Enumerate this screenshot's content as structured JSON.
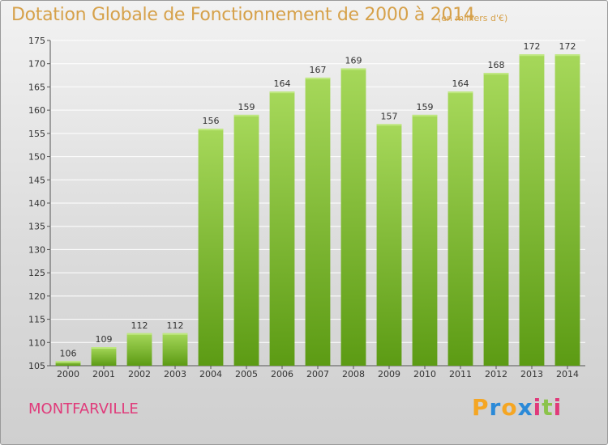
{
  "header": {
    "title": "Dotation Globale de Fonctionnement de 2000 à 2014",
    "unit": "(en milliers d'€)"
  },
  "footer": {
    "commune": "MONTFARVILLE",
    "logo_text": "Proxiti"
  },
  "colors": {
    "bar_top": "#9bd14c",
    "bar_bottom": "#5f9f16",
    "title": "#d6a14a",
    "commune": "#e03a7a",
    "logo_p": "#f5a623",
    "logo_r": "#2b8ad8",
    "logo_o": "#f5a623",
    "logo_x": "#2b8ad8",
    "logo_i": "#e03a7a",
    "logo_t": "#8bc34a"
  },
  "chart_data": {
    "type": "bar",
    "title": "Dotation Globale de Fonctionnement de 2000 à 2014",
    "subtitle": "(en milliers d'€)",
    "categories": [
      "2000",
      "2001",
      "2002",
      "2003",
      "2004",
      "2005",
      "2006",
      "2007",
      "2008",
      "2009",
      "2010",
      "2011",
      "2012",
      "2013",
      "2014"
    ],
    "values": [
      106,
      109,
      112,
      112,
      156,
      159,
      164,
      167,
      169,
      157,
      159,
      164,
      168,
      172,
      172
    ],
    "ylim": [
      105,
      175
    ],
    "yticks": [
      105,
      110,
      115,
      120,
      125,
      130,
      135,
      140,
      145,
      150,
      155,
      160,
      165,
      170,
      175
    ],
    "grid": true,
    "xlabel": "",
    "ylabel": ""
  }
}
